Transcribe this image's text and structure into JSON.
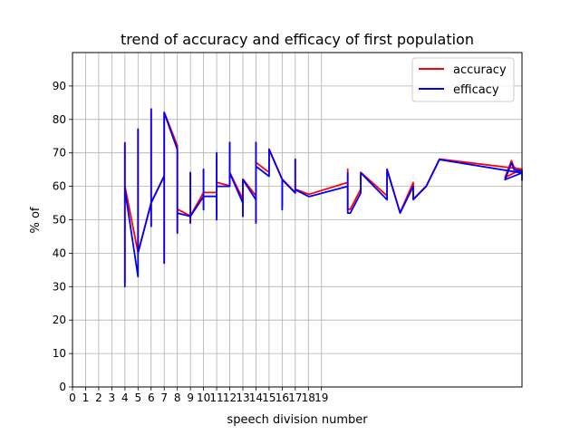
{
  "chart_data": {
    "type": "line",
    "title": "trend of accuracy and efficacy of first population",
    "xlabel": "speech division number",
    "ylabel": "% of",
    "xlim": [
      0,
      34.3
    ],
    "ylim": [
      0,
      100
    ],
    "x_ticks": [
      0,
      1,
      2,
      3,
      4,
      5,
      6,
      7,
      8,
      9,
      10,
      11,
      12,
      13,
      14,
      15,
      16,
      17,
      18,
      19
    ],
    "x_tick_labels": [
      "0",
      "1",
      "2",
      "3",
      "4",
      "5",
      "6",
      "7",
      "8",
      "9",
      "10",
      "11",
      "12",
      "13",
      "14",
      "15",
      "16",
      "17",
      "18",
      "19"
    ],
    "y_ticks": [
      0,
      10,
      20,
      30,
      40,
      50,
      60,
      70,
      80,
      90
    ],
    "y_tick_labels": [
      "0",
      "10",
      "20",
      "30",
      "40",
      "50",
      "60",
      "70",
      "80",
      "90"
    ],
    "grid": true,
    "legend_position": "top-right",
    "series": [
      {
        "name": "accuracy",
        "color": "#ff0000",
        "x": [
          4,
          4,
          4,
          4,
          4,
          4,
          5,
          5,
          5,
          6,
          6,
          6,
          6,
          7,
          7,
          7,
          7,
          8,
          8,
          8,
          8,
          9,
          9,
          9,
          9,
          10,
          10,
          10,
          10,
          11,
          11,
          11,
          11,
          11,
          12,
          12,
          12,
          13,
          13,
          13,
          13,
          14,
          14,
          14,
          14,
          15,
          15,
          16,
          16,
          16,
          17,
          17,
          17,
          18,
          18.1,
          21,
          21,
          21,
          21.2,
          22,
          22,
          24,
          24,
          25,
          26,
          26,
          27,
          28,
          34.3
        ],
        "y": [
          72,
          31,
          72,
          31,
          60,
          60,
          40,
          77,
          40,
          55,
          83,
          48,
          55,
          63,
          82,
          37,
          82,
          72,
          46,
          53,
          53,
          51,
          49,
          64,
          51,
          58,
          65,
          53,
          58,
          58,
          69,
          51,
          61,
          61,
          60,
          73,
          64,
          56,
          62,
          51,
          62,
          57,
          73,
          49,
          67,
          64,
          71,
          62,
          54,
          62,
          58,
          68,
          59,
          57.5,
          57.5,
          61,
          65,
          53,
          53,
          59,
          64,
          57,
          65,
          52,
          61,
          56,
          60,
          68,
          65
        ]
      },
      {
        "name": "efficacy",
        "color": "#0000ff",
        "x": [
          4,
          4,
          4,
          4,
          4,
          4,
          5,
          5,
          5,
          6,
          6,
          6,
          6,
          7,
          7,
          7,
          7,
          8,
          8,
          8,
          8,
          9,
          9,
          9,
          9,
          10,
          10,
          10,
          10,
          11,
          11,
          11,
          11,
          11,
          12,
          12,
          12,
          13,
          13,
          13,
          13,
          14,
          14,
          14,
          14,
          15,
          15,
          16,
          16,
          16,
          17,
          17,
          17,
          18,
          18.1,
          21,
          21,
          21,
          21.2,
          22,
          22,
          24,
          24,
          25,
          26,
          26,
          27,
          28,
          34.3
        ],
        "y": [
          73,
          30,
          73,
          30,
          59,
          59,
          33,
          77,
          40,
          55,
          83,
          48,
          55,
          63,
          82,
          37,
          82,
          71,
          46,
          52,
          52,
          51,
          49,
          64,
          51,
          57,
          65,
          53,
          57,
          57,
          70,
          50,
          60,
          60,
          60,
          73,
          64,
          55,
          62,
          51,
          62,
          56,
          73,
          49,
          66,
          63,
          71,
          62,
          53,
          62,
          58,
          68,
          59,
          57,
          57,
          60,
          64,
          52,
          52,
          58,
          64,
          56,
          65,
          52,
          60,
          56,
          60,
          68,
          64
        ]
      }
    ],
    "right_tail": {
      "accuracy_x": [
        28,
        33,
        33.5,
        33.7,
        34.3
      ],
      "accuracy_y": [
        68.5,
        62.5,
        67.5,
        65.5,
        64.5
      ],
      "efficacy_x": [
        28,
        33,
        33.5,
        33.7,
        34.3,
        34.3
      ],
      "efficacy_y": [
        68,
        62,
        67,
        65,
        64.5,
        62
      ]
    }
  }
}
